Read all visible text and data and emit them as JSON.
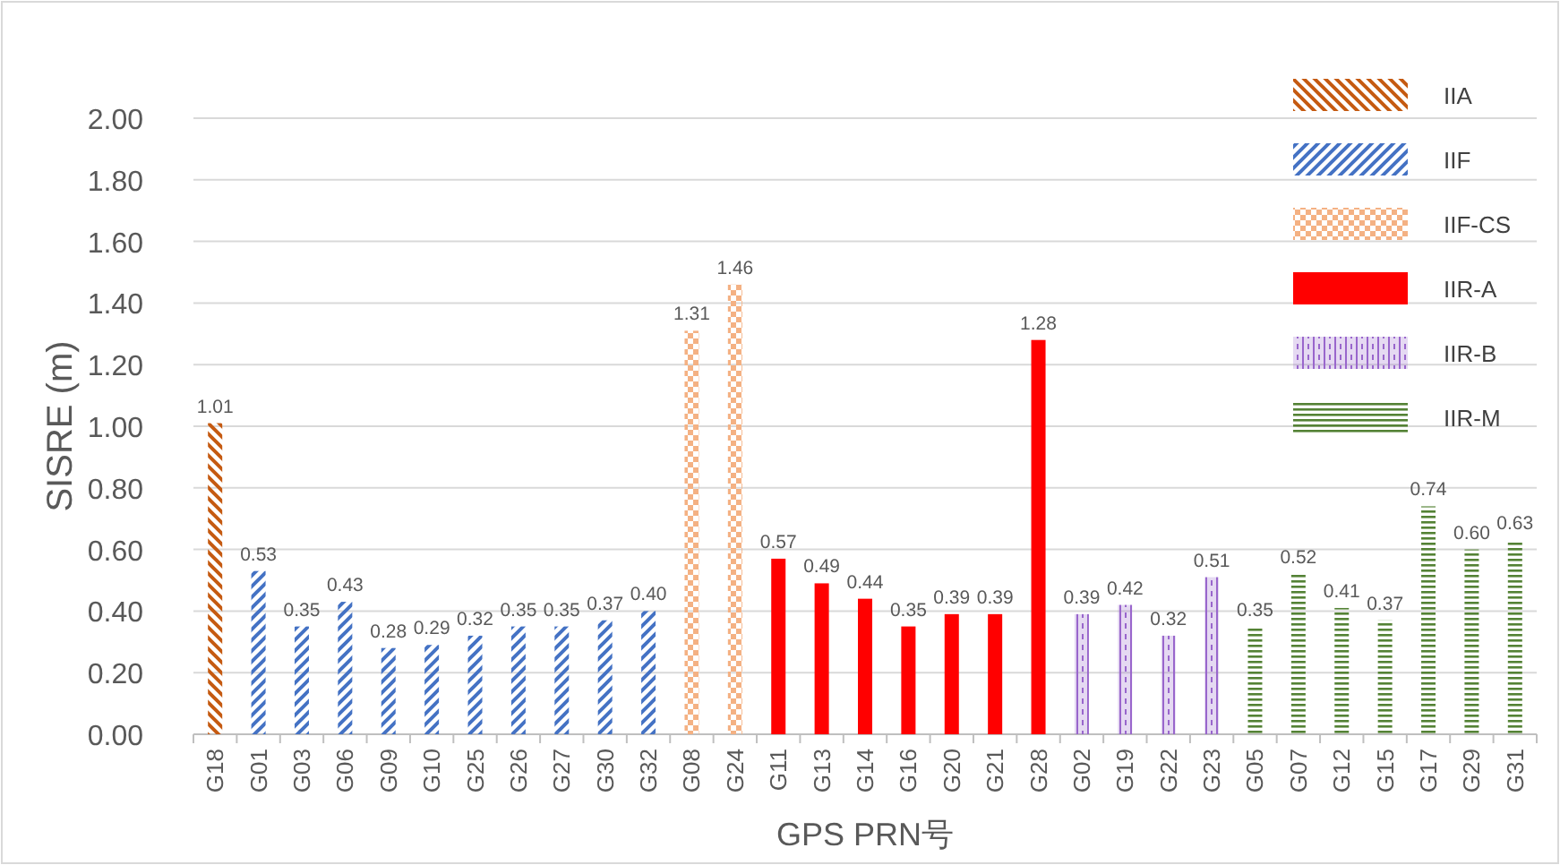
{
  "chart_data": {
    "type": "bar",
    "xlabel": "GPS PRN号",
    "ylabel": "SISRE (m)",
    "categories": [
      "G18",
      "G01",
      "G03",
      "G06",
      "G09",
      "G10",
      "G25",
      "G26",
      "G27",
      "G30",
      "G32",
      "G08",
      "G24",
      "G11",
      "G13",
      "G14",
      "G16",
      "G20",
      "G21",
      "G28",
      "G02",
      "G19",
      "G22",
      "G23",
      "G05",
      "G07",
      "G12",
      "G15",
      "G17",
      "G29",
      "G31"
    ],
    "ylim": [
      0,
      2
    ],
    "yticks": [
      {
        "value": 0,
        "label": "0.00"
      },
      {
        "value": 0.2,
        "label": "0.20"
      },
      {
        "value": 0.4,
        "label": "0.40"
      },
      {
        "value": 0.6,
        "label": "0.60"
      },
      {
        "value": 0.8,
        "label": "0.80"
      },
      {
        "value": 1,
        "label": "1.00"
      },
      {
        "value": 1.2,
        "label": "1.20"
      },
      {
        "value": 1.4,
        "label": "1.40"
      },
      {
        "value": 1.6,
        "label": "1.60"
      },
      {
        "value": 1.8,
        "label": "1.80"
      },
      {
        "value": 2,
        "label": "2.00"
      }
    ],
    "grid": "y",
    "legend": "top right",
    "series": [
      {
        "name": "IIA",
        "color": "#c55a11",
        "values": [
          1.01,
          null,
          null,
          null,
          null,
          null,
          null,
          null,
          null,
          null,
          null,
          null,
          null,
          null,
          null,
          null,
          null,
          null,
          null,
          null,
          null,
          null,
          null,
          null,
          null,
          null,
          null,
          null,
          null,
          null,
          null
        ],
        "value_labels": [
          "1.01",
          null,
          null,
          null,
          null,
          null,
          null,
          null,
          null,
          null,
          null,
          null,
          null,
          null,
          null,
          null,
          null,
          null,
          null,
          null,
          null,
          null,
          null,
          null,
          null,
          null,
          null,
          null,
          null,
          null,
          null
        ]
      },
      {
        "name": "IIF",
        "color": "#4472c4",
        "values": [
          null,
          0.53,
          0.35,
          0.43,
          0.28,
          0.29,
          0.32,
          0.35,
          0.35,
          0.37,
          0.4,
          null,
          null,
          null,
          null,
          null,
          null,
          null,
          null,
          null,
          null,
          null,
          null,
          null,
          null,
          null,
          null,
          null,
          null,
          null,
          null
        ],
        "value_labels": [
          null,
          "0.53",
          "0.35",
          "0.43",
          "0.28",
          "0.29",
          "0.32",
          "0.35",
          "0.35",
          "0.37",
          "0.40",
          null,
          null,
          null,
          null,
          null,
          null,
          null,
          null,
          null,
          null,
          null,
          null,
          null,
          null,
          null,
          null,
          null,
          null,
          null,
          null
        ]
      },
      {
        "name": "IIF-CS",
        "color": "#f4b183",
        "values": [
          null,
          null,
          null,
          null,
          null,
          null,
          null,
          null,
          null,
          null,
          null,
          1.31,
          1.46,
          null,
          null,
          null,
          null,
          null,
          null,
          null,
          null,
          null,
          null,
          null,
          null,
          null,
          null,
          null,
          null,
          null,
          null
        ],
        "value_labels": [
          null,
          null,
          null,
          null,
          null,
          null,
          null,
          null,
          null,
          null,
          null,
          "1.31",
          "1.46",
          null,
          null,
          null,
          null,
          null,
          null,
          null,
          null,
          null,
          null,
          null,
          null,
          null,
          null,
          null,
          null,
          null,
          null
        ]
      },
      {
        "name": "IIR-A",
        "color": "#ff0000",
        "values": [
          null,
          null,
          null,
          null,
          null,
          null,
          null,
          null,
          null,
          null,
          null,
          null,
          null,
          0.57,
          0.49,
          0.44,
          0.35,
          0.39,
          0.39,
          1.28,
          null,
          null,
          null,
          null,
          null,
          null,
          null,
          null,
          null,
          null,
          null
        ],
        "value_labels": [
          null,
          null,
          null,
          null,
          null,
          null,
          null,
          null,
          null,
          null,
          null,
          null,
          null,
          "0.57",
          "0.49",
          "0.44",
          "0.35",
          "0.39",
          "0.39",
          "1.28",
          null,
          null,
          null,
          null,
          null,
          null,
          null,
          null,
          null,
          null,
          null
        ]
      },
      {
        "name": "IIR-B",
        "color": "#9966cc",
        "values": [
          null,
          null,
          null,
          null,
          null,
          null,
          null,
          null,
          null,
          null,
          null,
          null,
          null,
          null,
          null,
          null,
          null,
          null,
          null,
          null,
          0.39,
          0.42,
          0.32,
          0.51,
          null,
          null,
          null,
          null,
          null,
          null,
          null
        ],
        "value_labels": [
          null,
          null,
          null,
          null,
          null,
          null,
          null,
          null,
          null,
          null,
          null,
          null,
          null,
          null,
          null,
          null,
          null,
          null,
          null,
          null,
          "0.39",
          "0.42",
          "0.32",
          "0.51",
          null,
          null,
          null,
          null,
          null,
          null,
          null
        ]
      },
      {
        "name": "IIR-M",
        "color": "#548235",
        "values": [
          null,
          null,
          null,
          null,
          null,
          null,
          null,
          null,
          null,
          null,
          null,
          null,
          null,
          null,
          null,
          null,
          null,
          null,
          null,
          null,
          null,
          null,
          null,
          null,
          0.35,
          0.52,
          0.41,
          0.37,
          0.74,
          0.6,
          0.63
        ],
        "value_labels": [
          null,
          null,
          null,
          null,
          null,
          null,
          null,
          null,
          null,
          null,
          null,
          null,
          null,
          null,
          null,
          null,
          null,
          null,
          null,
          null,
          null,
          null,
          null,
          null,
          "0.35",
          "0.52",
          "0.41",
          "0.37",
          "0.74",
          "0.60",
          "0.63"
        ]
      }
    ]
  }
}
